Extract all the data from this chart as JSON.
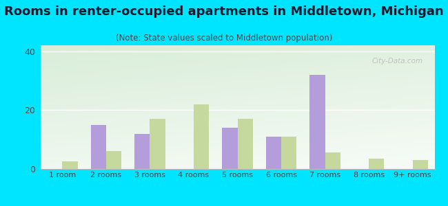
{
  "title": "Rooms in renter-occupied apartments in Middletown, Michigan",
  "subtitle": "(Note: State values scaled to Middletown population)",
  "categories": [
    "1 room",
    "2 rooms",
    "3 rooms",
    "4 rooms",
    "5 rooms",
    "6 rooms",
    "7 rooms",
    "8 rooms",
    "9+ rooms"
  ],
  "middletown_values": [
    0,
    15,
    12,
    0,
    14,
    11,
    32,
    0,
    0
  ],
  "michigan_values": [
    2.5,
    6,
    17,
    22,
    17,
    11,
    5.5,
    3.5,
    3
  ],
  "middletown_color": "#b39ddb",
  "michigan_color": "#c5d89d",
  "background_color": "#00e5ff",
  "ylim": [
    0,
    42
  ],
  "yticks": [
    0,
    20,
    40
  ],
  "bar_width": 0.35,
  "title_fontsize": 13,
  "subtitle_fontsize": 8.5,
  "watermark": "City-Data.com"
}
